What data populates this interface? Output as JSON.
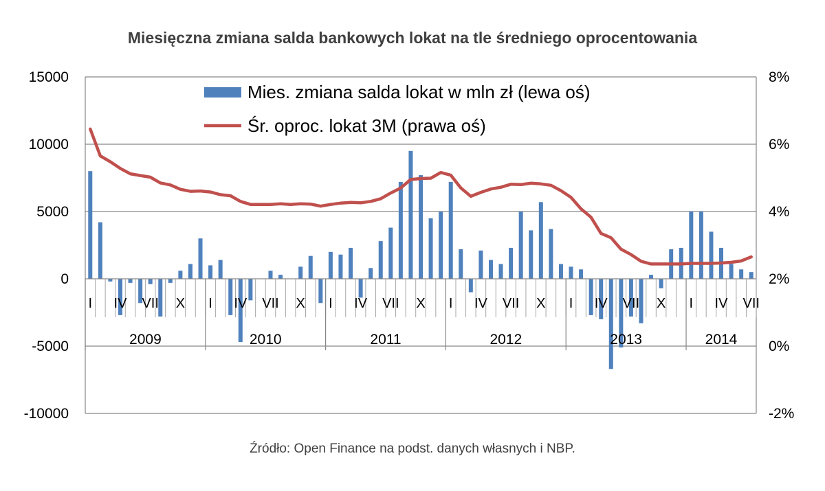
{
  "title": "Miesięczna zmiana salda bankowych lokat na tle średniego oprocentowania",
  "source": "Źródło: Open Finance na podst. danych własnych i NBP.",
  "chart_data": {
    "type": "bar+line",
    "title": "Miesięczna zmiana salda bankowych lokat na tle średniego oprocentowania",
    "left_axis": {
      "ticks": [
        "15000",
        "10000",
        "5000",
        "0",
        "-5000",
        "-10000"
      ],
      "ylim": [
        -10000,
        15000
      ]
    },
    "right_axis": {
      "ticks": [
        "8%",
        "6%",
        "4%",
        "2%",
        "0%",
        "-2%"
      ],
      "ylim": [
        -2,
        8
      ]
    },
    "grid": true,
    "legend_position": "top",
    "month_labels": [
      "I",
      "IV",
      "VII",
      "X"
    ],
    "years": [
      "2009",
      "2010",
      "2011",
      "2012",
      "2013",
      "2014"
    ],
    "series": [
      {
        "name": "Mies. zmiana salda lokat w mln zł (lewa oś)",
        "type": "bar",
        "color": "#4F81BD",
        "values": [
          8000,
          4200,
          -200,
          -2700,
          -300,
          -1800,
          -400,
          -2800,
          -300,
          600,
          1100,
          3000,
          1000,
          1400,
          -2700,
          -4700,
          -1600,
          0,
          600,
          300,
          0,
          900,
          1700,
          -1800,
          2000,
          1800,
          2300,
          -1400,
          800,
          2800,
          3800,
          7200,
          9500,
          7700,
          4500,
          5000,
          7200,
          2200,
          -1000,
          2100,
          1400,
          1100,
          2300,
          5000,
          3600,
          5700,
          3700,
          1100,
          900,
          700,
          -2700,
          -3000,
          -6700,
          -5100,
          -2800,
          -3300,
          300,
          -700,
          2200,
          2300,
          5000,
          5000,
          3500,
          2300,
          1100,
          700,
          500
        ]
      },
      {
        "name": "Śr. oproc. lokat 3M (prawa oś)",
        "type": "line",
        "color": "#C0504D",
        "values": [
          6.45,
          5.65,
          5.48,
          5.28,
          5.12,
          5.07,
          5.02,
          4.85,
          4.79,
          4.66,
          4.6,
          4.61,
          4.58,
          4.5,
          4.47,
          4.3,
          4.21,
          4.21,
          4.21,
          4.23,
          4.21,
          4.23,
          4.22,
          4.16,
          4.21,
          4.25,
          4.27,
          4.26,
          4.3,
          4.38,
          4.55,
          4.7,
          4.95,
          4.98,
          4.99,
          5.16,
          5.08,
          4.7,
          4.45,
          4.57,
          4.67,
          4.72,
          4.81,
          4.8,
          4.84,
          4.82,
          4.78,
          4.62,
          4.42,
          4.08,
          3.83,
          3.35,
          3.22,
          2.88,
          2.72,
          2.52,
          2.44,
          2.44,
          2.44,
          2.44,
          2.46,
          2.46,
          2.46,
          2.47,
          2.49,
          2.53,
          2.65
        ]
      }
    ]
  }
}
